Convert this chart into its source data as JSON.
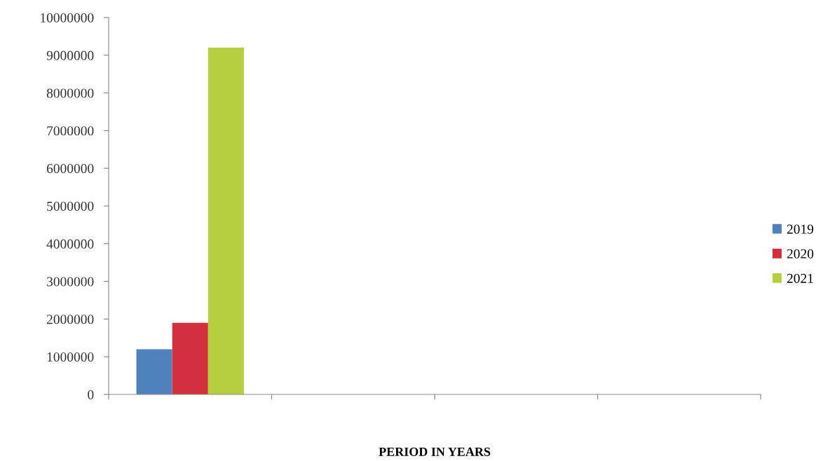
{
  "chart_data": {
    "type": "bar",
    "xlabel": "PERIOD IN YEARS",
    "categories": [
      null,
      null,
      null,
      null
    ],
    "series": [
      {
        "name": "2019",
        "color": "#4f81bd",
        "values": [
          1200000,
          null,
          null,
          null
        ]
      },
      {
        "name": "2020",
        "color": "#d2303f",
        "values": [
          1900000,
          null,
          null,
          null
        ]
      },
      {
        "name": "2021",
        "color": "#b5cf3f",
        "values": [
          9200000,
          null,
          null,
          null
        ]
      }
    ],
    "ylim": [
      0,
      10000000
    ],
    "yticks": [
      0,
      1000000,
      2000000,
      3000000,
      4000000,
      5000000,
      6000000,
      7000000,
      8000000,
      9000000,
      10000000
    ],
    "grid": false,
    "legend": "right"
  }
}
